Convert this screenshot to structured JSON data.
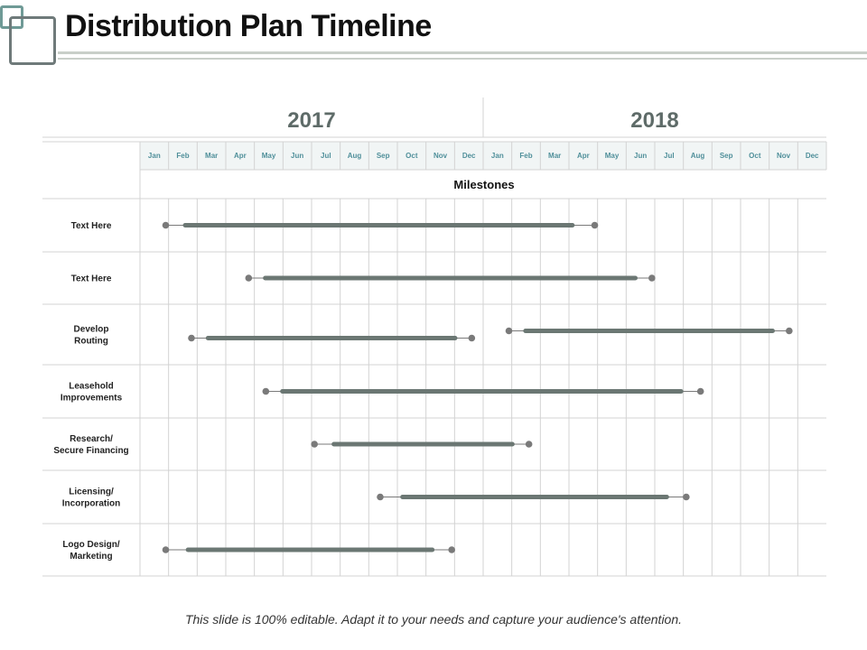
{
  "slide": {
    "title": "Distribution Plan Timeline",
    "footer": "This slide is 100% editable. Adapt it to your needs and capture your audience's attention."
  },
  "colors": {
    "bar": "#6b7773",
    "dot": "#7a7a7a",
    "grid": "#d3d3d3",
    "month_text": "#4f8f9a",
    "month_band": "#f1f5f5",
    "year_text": "#5e6b68"
  },
  "chart_data": {
    "type": "gantt",
    "title": "Milestones",
    "years": [
      "2017",
      "2018"
    ],
    "months": [
      "Jan",
      "Feb",
      "Mar",
      "Apr",
      "May",
      "Jun",
      "Jul",
      "Aug",
      "Sep",
      "Oct",
      "Nov",
      "Dec",
      "Jan",
      "Feb",
      "Mar",
      "Apr",
      "May",
      "Jun",
      "Jul",
      "Aug",
      "Sep",
      "Oct",
      "Nov",
      "Dec"
    ],
    "x_unit": "month index from start of Jan 2017 (0 = start of Jan 2017, 24 = end of Dec 2018)",
    "rows": [
      {
        "label": [
          "Text Here"
        ],
        "tasks": [
          {
            "start": 0.9,
            "bar_start": 1.5,
            "bar_end": 15.2,
            "end": 15.9
          }
        ]
      },
      {
        "label": [
          "Text Here"
        ],
        "tasks": [
          {
            "start": 3.8,
            "bar_start": 4.3,
            "bar_end": 17.4,
            "end": 17.9
          }
        ]
      },
      {
        "label": [
          "Develop",
          "Routing"
        ],
        "tasks": [
          {
            "start": 1.8,
            "bar_start": 2.3,
            "bar_end": 11.1,
            "end": 11.6
          },
          {
            "start": 12.9,
            "bar_start": 13.4,
            "bar_end": 22.2,
            "end": 22.7
          }
        ]
      },
      {
        "label": [
          "Leasehold",
          "Improvements"
        ],
        "tasks": [
          {
            "start": 4.4,
            "bar_start": 4.9,
            "bar_end": 19.0,
            "end": 19.6
          }
        ]
      },
      {
        "label": [
          "Research/",
          "Secure Financing"
        ],
        "tasks": [
          {
            "start": 6.1,
            "bar_start": 6.7,
            "bar_end": 13.1,
            "end": 13.6
          }
        ]
      },
      {
        "label": [
          "Licensing/",
          "Incorporation"
        ],
        "tasks": [
          {
            "start": 8.4,
            "bar_start": 9.1,
            "bar_end": 18.5,
            "end": 19.1
          }
        ]
      },
      {
        "label": [
          "Logo Design/",
          "Marketing"
        ],
        "tasks": [
          {
            "start": 0.9,
            "bar_start": 1.6,
            "bar_end": 10.3,
            "end": 10.9
          }
        ]
      }
    ]
  }
}
